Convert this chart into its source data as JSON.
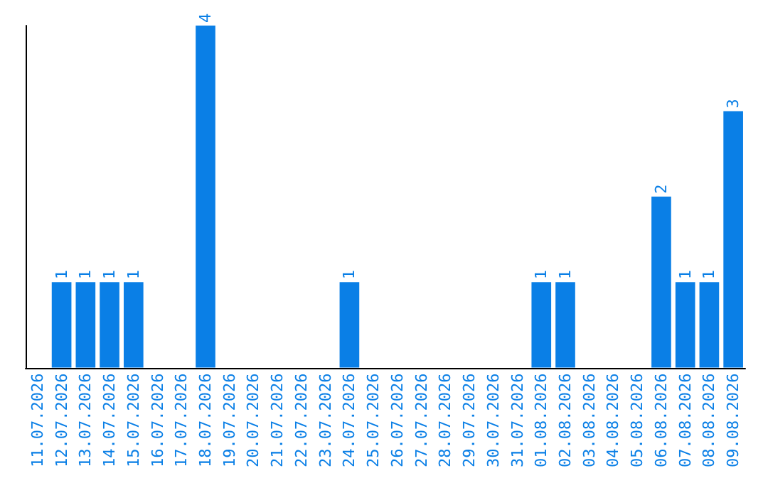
{
  "chart_data": {
    "type": "bar",
    "categories": [
      "11.07.2026",
      "12.07.2026",
      "13.07.2026",
      "14.07.2026",
      "15.07.2026",
      "16.07.2026",
      "17.07.2026",
      "18.07.2026",
      "19.07.2026",
      "20.07.2026",
      "21.07.2026",
      "22.07.2026",
      "23.07.2026",
      "24.07.2026",
      "25.07.2026",
      "26.07.2026",
      "27.07.2026",
      "28.07.2026",
      "29.07.2026",
      "30.07.2026",
      "31.07.2026",
      "01.08.2026",
      "02.08.2026",
      "03.08.2026",
      "04.08.2026",
      "05.08.2026",
      "06.08.2026",
      "07.08.2026",
      "08.08.2026",
      "09.08.2026"
    ],
    "values": [
      null,
      1,
      1,
      1,
      1,
      null,
      null,
      4,
      null,
      null,
      null,
      null,
      null,
      1,
      null,
      null,
      null,
      null,
      null,
      null,
      null,
      1,
      1,
      null,
      null,
      null,
      2,
      1,
      1,
      3
    ],
    "color": "#0a7fe6",
    "ylim": [
      0,
      4
    ],
    "data_labels": true,
    "tick_labels": "x"
  }
}
